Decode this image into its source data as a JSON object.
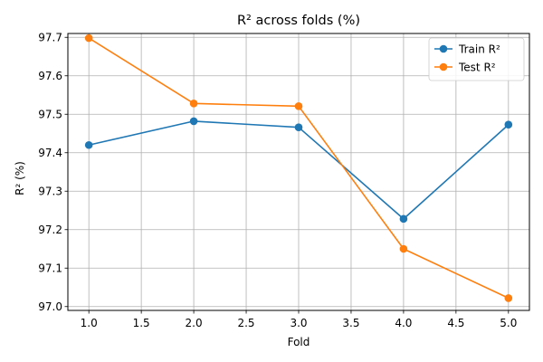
{
  "chart_data": {
    "type": "line",
    "title": "R² across folds (%)",
    "xlabel": "Fold",
    "ylabel": "R² (%)",
    "x": [
      1.0,
      2.0,
      3.0,
      4.0,
      5.0
    ],
    "xlim": [
      0.8,
      5.2
    ],
    "ylim": [
      96.99,
      97.71
    ],
    "xticks": [
      1.0,
      1.5,
      2.0,
      2.5,
      3.0,
      3.5,
      4.0,
      4.5,
      5.0
    ],
    "xtick_labels": [
      "1.0",
      "1.5",
      "2.0",
      "2.5",
      "3.0",
      "3.5",
      "4.0",
      "4.5",
      "5.0"
    ],
    "yticks": [
      97.0,
      97.1,
      97.2,
      97.3,
      97.4,
      97.5,
      97.6,
      97.7
    ],
    "ytick_labels": [
      "97.0",
      "97.1",
      "97.2",
      "97.3",
      "97.4",
      "97.5",
      "97.6",
      "97.7"
    ],
    "grid": true,
    "legend_position": "top-right",
    "series": [
      {
        "name": "Train R²",
        "color": "#1f77b4",
        "values": [
          97.42,
          97.482,
          97.466,
          97.228,
          97.473
        ]
      },
      {
        "name": "Test R²",
        "color": "#ff7f0e",
        "values": [
          97.698,
          97.528,
          97.521,
          97.15,
          97.022
        ]
      }
    ]
  }
}
